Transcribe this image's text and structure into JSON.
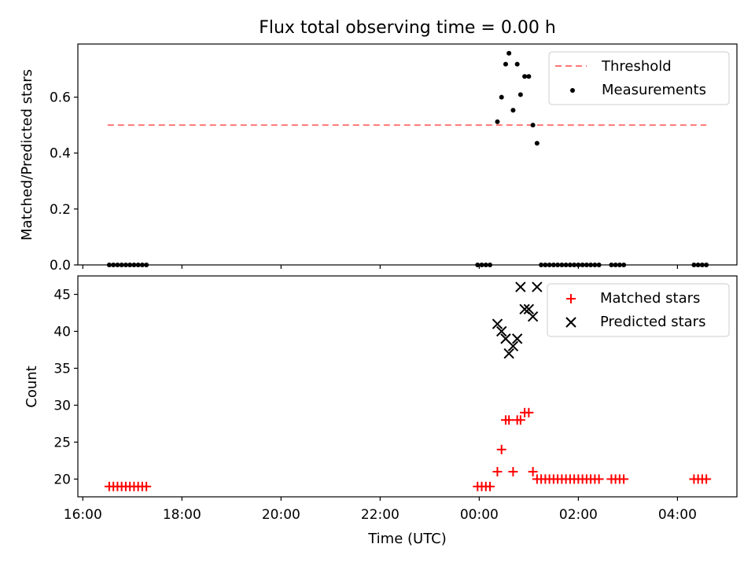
{
  "chart_data": [
    {
      "type": "scatter",
      "title": "Flux total observing time = 0.00 h",
      "xlabel": "",
      "ylabel": "Matched/Predicted stars",
      "xlim": [
        "15:54",
        "05:12"
      ],
      "ylim": [
        0,
        0.79
      ],
      "yticks": [
        0.0,
        0.2,
        0.4,
        0.6
      ],
      "ytick_labels": [
        "0.0",
        "0.2",
        "0.4",
        "0.6"
      ],
      "legend_position": "upper-right",
      "threshold": {
        "name": "Threshold",
        "color": "#ff7777",
        "style": "dashed",
        "x": [
          "16:30",
          "04:35"
        ],
        "y": 0.5
      },
      "measurements": {
        "name": "Measurements",
        "color": "#000000",
        "points": [
          {
            "x": "16:32",
            "y": 0
          },
          {
            "x": "16:37",
            "y": 0
          },
          {
            "x": "16:42",
            "y": 0
          },
          {
            "x": "16:47",
            "y": 0
          },
          {
            "x": "16:52",
            "y": 0
          },
          {
            "x": "16:57",
            "y": 0
          },
          {
            "x": "17:02",
            "y": 0
          },
          {
            "x": "17:07",
            "y": 0
          },
          {
            "x": "17:12",
            "y": 0
          },
          {
            "x": "17:17",
            "y": 0
          },
          {
            "x": "23:58",
            "y": 0
          },
          {
            "x": "00:03",
            "y": 0
          },
          {
            "x": "00:08",
            "y": 0
          },
          {
            "x": "00:13",
            "y": 0
          },
          {
            "x": "00:22",
            "y": 0.512
          },
          {
            "x": "00:27",
            "y": 0.6
          },
          {
            "x": "00:32",
            "y": 0.718
          },
          {
            "x": "00:36",
            "y": 0.757
          },
          {
            "x": "00:41",
            "y": 0.553
          },
          {
            "x": "00:46",
            "y": 0.718
          },
          {
            "x": "00:50",
            "y": 0.609
          },
          {
            "x": "00:55",
            "y": 0.674
          },
          {
            "x": "01:00",
            "y": 0.674
          },
          {
            "x": "01:05",
            "y": 0.5
          },
          {
            "x": "01:10",
            "y": 0.435
          },
          {
            "x": "01:15",
            "y": 0
          },
          {
            "x": "01:20",
            "y": 0
          },
          {
            "x": "01:25",
            "y": 0
          },
          {
            "x": "01:30",
            "y": 0
          },
          {
            "x": "01:35",
            "y": 0
          },
          {
            "x": "01:40",
            "y": 0
          },
          {
            "x": "01:45",
            "y": 0
          },
          {
            "x": "01:50",
            "y": 0
          },
          {
            "x": "01:55",
            "y": 0
          },
          {
            "x": "02:00",
            "y": 0
          },
          {
            "x": "02:05",
            "y": 0
          },
          {
            "x": "02:10",
            "y": 0
          },
          {
            "x": "02:15",
            "y": 0
          },
          {
            "x": "02:20",
            "y": 0
          },
          {
            "x": "02:25",
            "y": 0
          },
          {
            "x": "02:40",
            "y": 0
          },
          {
            "x": "02:45",
            "y": 0
          },
          {
            "x": "02:50",
            "y": 0
          },
          {
            "x": "02:55",
            "y": 0
          },
          {
            "x": "04:20",
            "y": 0
          },
          {
            "x": "04:25",
            "y": 0
          },
          {
            "x": "04:30",
            "y": 0
          },
          {
            "x": "04:35",
            "y": 0
          }
        ]
      }
    },
    {
      "type": "scatter",
      "title": "",
      "xlabel": "Time (UTC)",
      "ylabel": "Count",
      "xlim": [
        "15:54",
        "05:12"
      ],
      "ylim": [
        17.6,
        47.5
      ],
      "yticks": [
        20,
        25,
        30,
        35,
        40,
        45
      ],
      "ytick_labels": [
        "20",
        "25",
        "30",
        "35",
        "40",
        "45"
      ],
      "xticks": [
        "16:00",
        "18:00",
        "20:00",
        "22:00",
        "00:00",
        "02:00",
        "04:00"
      ],
      "xtick_labels": [
        "16:00",
        "18:00",
        "20:00",
        "22:00",
        "00:00",
        "02:00",
        "04:00"
      ],
      "legend_position": "upper-right",
      "series": [
        {
          "name": "Matched stars",
          "marker": "plus",
          "color": "#ff0000",
          "points": [
            {
              "x": "16:32",
              "y": 19
            },
            {
              "x": "16:37",
              "y": 19
            },
            {
              "x": "16:42",
              "y": 19
            },
            {
              "x": "16:47",
              "y": 19
            },
            {
              "x": "16:52",
              "y": 19
            },
            {
              "x": "16:57",
              "y": 19
            },
            {
              "x": "17:02",
              "y": 19
            },
            {
              "x": "17:07",
              "y": 19
            },
            {
              "x": "17:12",
              "y": 19
            },
            {
              "x": "17:17",
              "y": 19
            },
            {
              "x": "23:58",
              "y": 19
            },
            {
              "x": "00:03",
              "y": 19
            },
            {
              "x": "00:08",
              "y": 19
            },
            {
              "x": "00:13",
              "y": 19
            },
            {
              "x": "00:22",
              "y": 21
            },
            {
              "x": "00:27",
              "y": 24
            },
            {
              "x": "00:32",
              "y": 28
            },
            {
              "x": "00:36",
              "y": 28
            },
            {
              "x": "00:41",
              "y": 21
            },
            {
              "x": "00:46",
              "y": 28
            },
            {
              "x": "00:50",
              "y": 28
            },
            {
              "x": "00:55",
              "y": 29
            },
            {
              "x": "01:00",
              "y": 29
            },
            {
              "x": "01:05",
              "y": 21
            },
            {
              "x": "01:10",
              "y": 20
            },
            {
              "x": "01:15",
              "y": 20
            },
            {
              "x": "01:20",
              "y": 20
            },
            {
              "x": "01:25",
              "y": 20
            },
            {
              "x": "01:30",
              "y": 20
            },
            {
              "x": "01:35",
              "y": 20
            },
            {
              "x": "01:40",
              "y": 20
            },
            {
              "x": "01:45",
              "y": 20
            },
            {
              "x": "01:50",
              "y": 20
            },
            {
              "x": "01:55",
              "y": 20
            },
            {
              "x": "02:00",
              "y": 20
            },
            {
              "x": "02:05",
              "y": 20
            },
            {
              "x": "02:10",
              "y": 20
            },
            {
              "x": "02:15",
              "y": 20
            },
            {
              "x": "02:20",
              "y": 20
            },
            {
              "x": "02:25",
              "y": 20
            },
            {
              "x": "02:40",
              "y": 20
            },
            {
              "x": "02:45",
              "y": 20
            },
            {
              "x": "02:50",
              "y": 20
            },
            {
              "x": "02:55",
              "y": 20
            },
            {
              "x": "04:20",
              "y": 20
            },
            {
              "x": "04:25",
              "y": 20
            },
            {
              "x": "04:30",
              "y": 20
            },
            {
              "x": "04:35",
              "y": 20
            }
          ]
        },
        {
          "name": "Predicted stars",
          "marker": "x",
          "color": "#000000",
          "points": [
            {
              "x": "00:22",
              "y": 41
            },
            {
              "x": "00:27",
              "y": 40
            },
            {
              "x": "00:32",
              "y": 39
            },
            {
              "x": "00:36",
              "y": 37
            },
            {
              "x": "00:41",
              "y": 38
            },
            {
              "x": "00:46",
              "y": 39
            },
            {
              "x": "00:50",
              "y": 46
            },
            {
              "x": "00:55",
              "y": 43
            },
            {
              "x": "01:00",
              "y": 43
            },
            {
              "x": "01:05",
              "y": 42
            },
            {
              "x": "01:10",
              "y": 46
            }
          ]
        }
      ]
    }
  ]
}
